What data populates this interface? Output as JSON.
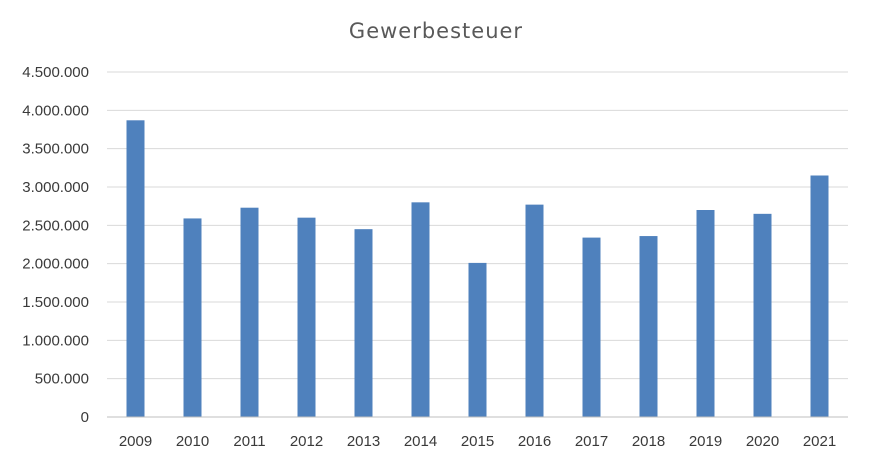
{
  "chart_data": {
    "type": "bar",
    "title": "Gewerbesteuer",
    "xlabel": "",
    "ylabel": "",
    "categories": [
      "2009",
      "2010",
      "2011",
      "2012",
      "2013",
      "2014",
      "2015",
      "2016",
      "2017",
      "2018",
      "2019",
      "2020",
      "2021"
    ],
    "values": [
      3870000,
      2590000,
      2730000,
      2600000,
      2450000,
      2800000,
      2010000,
      2770000,
      2340000,
      2360000,
      2700000,
      2650000,
      3150000
    ],
    "ylim": [
      0,
      4500000
    ],
    "yticks": [
      0,
      500000,
      1000000,
      1500000,
      2000000,
      2500000,
      3000000,
      3500000,
      4000000,
      4500000
    ],
    "ytick_labels": [
      "0",
      "500.000",
      "1.000.000",
      "1.500.000",
      "2.000.000",
      "2.500.000",
      "3.000.000",
      "3.500.000",
      "4.000.000",
      "4.500.000"
    ],
    "grid": true,
    "legend": "none",
    "bar_color": "#4f81bd"
  }
}
